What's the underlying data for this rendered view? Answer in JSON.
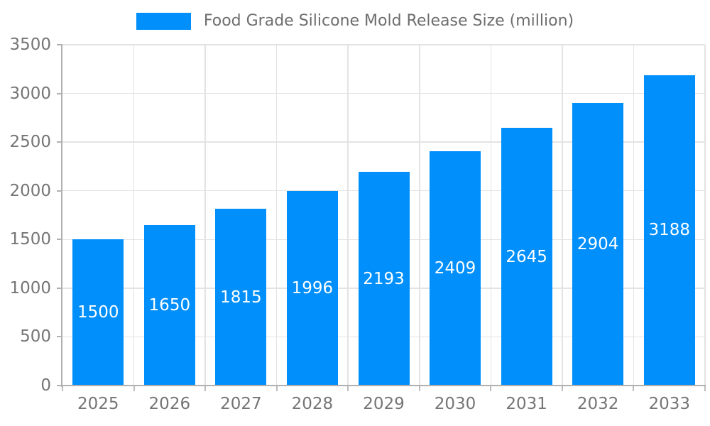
{
  "legend": {
    "position": "top"
  },
  "chart_data": {
    "type": "bar",
    "categories": [
      "2025",
      "2026",
      "2027",
      "2028",
      "2029",
      "2030",
      "2031",
      "2032",
      "2033"
    ],
    "series": [
      {
        "name": "Food Grade Silicone Mold Release Size (million)",
        "values": [
          1500,
          1650,
          1815,
          1996,
          2193,
          2409,
          2645,
          2904,
          3188
        ]
      }
    ],
    "title": "",
    "xlabel": "",
    "ylabel": "",
    "ylim": [
      0,
      3500
    ],
    "ytick_step": 500,
    "y_tick_labels": [
      "0",
      "500",
      "1000",
      "1500",
      "2000",
      "2500",
      "3000",
      "3500"
    ],
    "grid": true,
    "legend_position": "top",
    "bar_color": "#008ffb",
    "value_label_color": "#ffffff",
    "axis_label_color": "#757575",
    "axis_line_color": "#b0b0b0",
    "gridline_color": "#e3e3e3",
    "value_labels_shown": true
  }
}
